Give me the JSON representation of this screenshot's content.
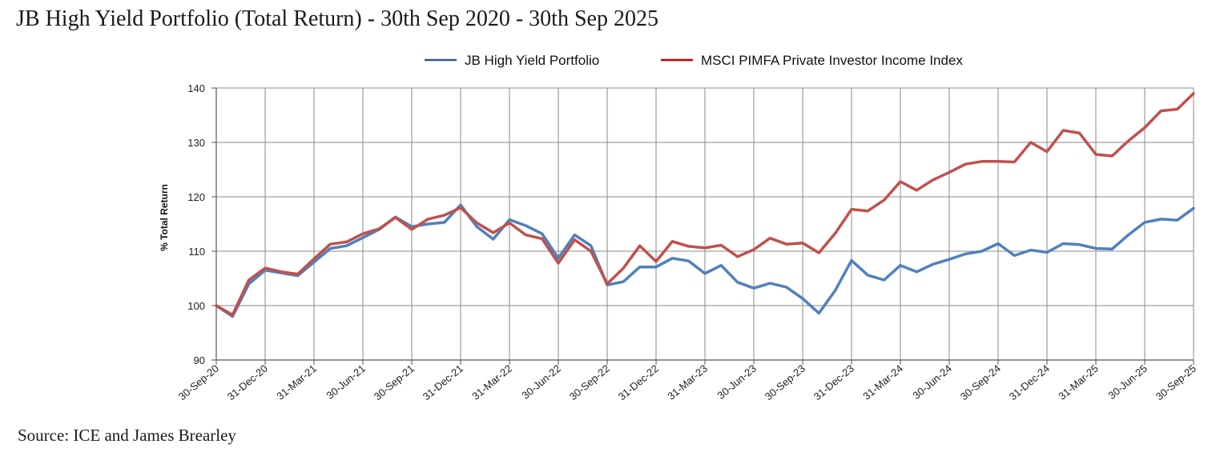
{
  "title": "JB High Yield Portfolio (Total Return) - 30th Sep 2020 - 30th Sep 2025",
  "source": "Source: ICE and James Brearley",
  "chart_data": {
    "type": "line",
    "ylabel": "% Total Return",
    "xlabel": "",
    "ylim": [
      90,
      140
    ],
    "yticks": [
      90,
      100,
      110,
      120,
      130,
      140
    ],
    "grid": true,
    "legend_position": "top",
    "x_tick_labels": [
      "30-Sep-20",
      "31-Dec-20",
      "31-Mar-21",
      "30-Jun-21",
      "30-Sep-21",
      "31-Dec-21",
      "31-Mar-22",
      "30-Jun-22",
      "30-Sep-22",
      "31-Dec-22",
      "31-Mar-23",
      "30-Jun-23",
      "30-Sep-23",
      "31-Dec-23",
      "31-Mar-24",
      "30-Jun-24",
      "30-Sep-24",
      "31-Dec-24",
      "31-Mar-25",
      "30-Jun-25",
      "30-Sep-25"
    ],
    "series": [
      {
        "name": "JB High Yield Portfolio",
        "color": "#4f81bd",
        "values": [
          100,
          98,
          104,
          106.5,
          106,
          105.5,
          108,
          110.5,
          111,
          112.5,
          114,
          116.3,
          114.5,
          115,
          115.3,
          118.5,
          114.5,
          112.2,
          115.8,
          114.7,
          113.2,
          108.7,
          113,
          111,
          103.8,
          104.4,
          107.1,
          107.1,
          108.7,
          108.2,
          105.9,
          107.4,
          104.3,
          103.2,
          104.1,
          103.4,
          101.3,
          98.6,
          102.8,
          108.3,
          105.6,
          104.7,
          107.4,
          106.2,
          107.6,
          108.5,
          109.5,
          110,
          111.4,
          109.2,
          110.2,
          109.8,
          111.4,
          111.2,
          110.5,
          110.4,
          113,
          115.3,
          115.9,
          115.7,
          117.9
        ]
      },
      {
        "name": "MSCI PIMFA Private Investor Income Index",
        "color": "#c0504d",
        "values": [
          100,
          98.3,
          104.7,
          106.9,
          106.2,
          105.8,
          108.6,
          111.3,
          111.7,
          113.2,
          114.1,
          116.2,
          114,
          115.9,
          116.6,
          118,
          115.2,
          113.4,
          115.2,
          113,
          112.3,
          107.8,
          112.1,
          110,
          104,
          106.9,
          111,
          108.1,
          111.8,
          110.9,
          110.6,
          111.1,
          109,
          110.3,
          112.4,
          111.3,
          111.5,
          109.7,
          113.3,
          117.7,
          117.4,
          119.4,
          122.8,
          121.2,
          123.1,
          124.5,
          126,
          126.5,
          126.5,
          126.4,
          130,
          128.3,
          132.2,
          131.7,
          127.8,
          127.5,
          130.3,
          132.7,
          135.8,
          136.1,
          139
        ]
      }
    ]
  }
}
